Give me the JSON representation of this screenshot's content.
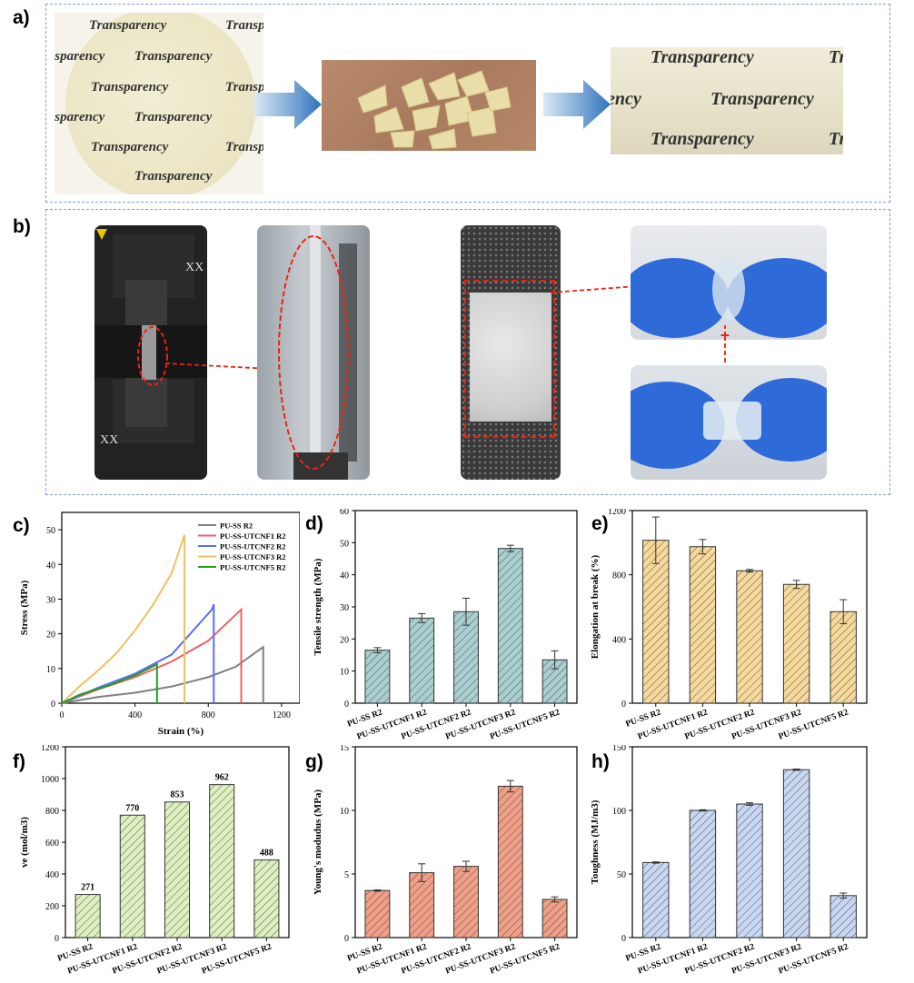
{
  "panel_labels": {
    "a": "a)",
    "b": "b)",
    "c": "c)",
    "d": "d)",
    "e": "e)",
    "f": "f)",
    "g": "g)",
    "h": "h)"
  },
  "panel_a": {
    "photo_word": "Transparency"
  },
  "colors": {
    "dash_border": "#7c9bd6",
    "bar_teal": "#a9cfd1",
    "bar_orange": "#f7d99b",
    "bar_green": "#dff0bf",
    "bar_red": "#f19f86",
    "bar_blue": "#c8d8f3",
    "arrow_blue": "#3a7fc4"
  },
  "chart_data": [
    {
      "id": "c",
      "type": "line",
      "xlabel": "Strain (%)",
      "ylabel": "Stress (MPa)",
      "xlim": [
        0,
        1300
      ],
      "ylim": [
        0,
        55
      ],
      "xticks": [
        "0",
        "400",
        "800",
        "1200"
      ],
      "yticks": [
        "0",
        "10",
        "20",
        "30",
        "40",
        "50"
      ],
      "legend": "top-right",
      "series": [
        {
          "name": "PU-SS R2",
          "color": "#808080",
          "x": [
            0,
            200,
            400,
            600,
            800,
            950,
            1100,
            1100
          ],
          "y": [
            0,
            1.8,
            3,
            4.8,
            7.5,
            10.5,
            16.2,
            0
          ]
        },
        {
          "name": "PU-SS-UTCNF1 R2",
          "color": "#f06262",
          "x": [
            0,
            200,
            400,
            600,
            800,
            980,
            980
          ],
          "y": [
            0,
            4,
            7.5,
            12,
            18,
            27,
            0
          ]
        },
        {
          "name": "PU-SS-UTCNF2 R2",
          "color": "#5a6ff0",
          "x": [
            0,
            200,
            400,
            600,
            820,
            830,
            830
          ],
          "y": [
            0,
            4.5,
            8.5,
            14,
            27,
            28.5,
            0
          ]
        },
        {
          "name": "PU-SS-UTCNF3 R2",
          "color": "#f0c060",
          "x": [
            0,
            100,
            200,
            300,
            400,
            500,
            600,
            670,
            670
          ],
          "y": [
            0,
            5,
            9.5,
            14.5,
            21,
            28.5,
            37.5,
            48.5,
            0
          ]
        },
        {
          "name": "PU-SS-UTCNF5 R2",
          "color": "#20a020",
          "x": [
            0,
            100,
            250,
            400,
            520,
            520
          ],
          "y": [
            0,
            2.5,
            5,
            8,
            11.2,
            0
          ]
        }
      ]
    },
    {
      "id": "d",
      "type": "bar",
      "ylabel": "Tensile strength (MPa)",
      "ylim": [
        0,
        60
      ],
      "yticks": [
        "0",
        "10",
        "20",
        "30",
        "40",
        "50",
        "60"
      ],
      "categories": [
        "PU-SS R2",
        "PU-SS-UTCNF1 R2",
        "PU-SS-UTCNF2 R2",
        "PU-SS-UTCNF3 R2",
        "PU-SS-UTCNF5 R2"
      ],
      "values": [
        16.5,
        26.5,
        28.5,
        48.2,
        13.5
      ],
      "errors": [
        0.8,
        1.4,
        4.2,
        1,
        2.8
      ]
    },
    {
      "id": "e",
      "type": "bar",
      "ylabel": "Elongation at break (%)",
      "ylim": [
        0,
        1200
      ],
      "yticks": [
        "0",
        "400",
        "800",
        "1200"
      ],
      "categories": [
        "PU-SS R2",
        "PU-SS-UTCNF1 R2",
        "PU-SS-UTCNF2 R2",
        "PU-SS-UTCNF3 R2",
        "PU-SS-UTCNF5 R2"
      ],
      "values": [
        1015,
        975,
        825,
        740,
        570
      ],
      "errors": [
        145,
        45,
        8,
        25,
        75
      ]
    },
    {
      "id": "f",
      "type": "bar",
      "ylabel": "ve (mol/m3)",
      "ylim": [
        0,
        1200
      ],
      "yticks": [
        "0",
        "200",
        "400",
        "600",
        "800",
        "1000",
        "1200"
      ],
      "categories": [
        "PU-SS R2",
        "PU-SS-UTCNF1 R2",
        "PU-SS-UTCNF2 R2",
        "PU-SS-UTCNF3 R2",
        "PU-SS-UTCNF5 R2"
      ],
      "values": [
        271,
        770,
        853,
        962,
        488
      ],
      "data_labels": [
        "271",
        "770",
        "853",
        "962",
        "488"
      ]
    },
    {
      "id": "g",
      "type": "bar",
      "ylabel": "Young's modudus (MPa)",
      "ylim": [
        0,
        15
      ],
      "yticks": [
        "0",
        "5",
        "10",
        "15"
      ],
      "categories": [
        "PU-SS R2",
        "PU-SS-UTCNF1 R2",
        "PU-SS-UTCNF2 R2",
        "PU-SS-UTCNF3 R2",
        "PU-SS-UTCNF5 R2"
      ],
      "values": [
        3.7,
        5.1,
        5.6,
        11.9,
        3
      ],
      "errors": [
        0.05,
        0.7,
        0.4,
        0.45,
        0.2
      ]
    },
    {
      "id": "h",
      "type": "bar",
      "ylabel": "Toughness (MJ/m3)",
      "ylim": [
        0,
        150
      ],
      "yticks": [
        "0",
        "50",
        "100",
        "150"
      ],
      "categories": [
        "PU-SS R2",
        "PU-SS-UTCNF1 R2",
        "PU-SS-UTCNF2 R2",
        "PU-SS-UTCNF3 R2",
        "PU-SS-UTCNF5 R2"
      ],
      "values": [
        59,
        100,
        105,
        132,
        33
      ],
      "errors": [
        0.5,
        0.5,
        1,
        0.5,
        2
      ]
    }
  ]
}
